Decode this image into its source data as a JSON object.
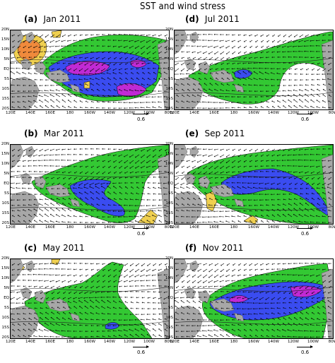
{
  "figure": {
    "title": "SST and wind stress",
    "reference_vector": "0.6",
    "y_ticks": [
      "20N",
      "15N",
      "10N",
      "5N",
      "EQ",
      "5S",
      "10S",
      "15S",
      "20S"
    ],
    "x_ticks": [
      "120E",
      "140E",
      "160E",
      "180",
      "160W",
      "140W",
      "120W",
      "100W",
      "80W"
    ]
  },
  "colors": {
    "land": "#a7a7a7",
    "green": "#33c833",
    "blue": "#3a4cf0",
    "magenta": "#c02ad4",
    "yellow": "#f0d050",
    "orange": "#f08a3c",
    "arrow": "#000000"
  },
  "panels": [
    {
      "id": "a",
      "label": "(a)",
      "month": "Jan 2011",
      "levels": [
        "green",
        "blue",
        "magenta"
      ],
      "warm": [
        "yellow",
        "orange"
      ]
    },
    {
      "id": "d",
      "label": "(d)",
      "month": "Jul 2011",
      "levels": [
        "green",
        "blue"
      ],
      "warm": []
    },
    {
      "id": "b",
      "label": "(b)",
      "month": "Mar 2011",
      "levels": [
        "green",
        "blue"
      ],
      "warm": [
        "yellow"
      ]
    },
    {
      "id": "e",
      "label": "(e)",
      "month": "Sep 2011",
      "levels": [
        "green",
        "blue"
      ],
      "warm": [
        "yellow"
      ]
    },
    {
      "id": "c",
      "label": "(c)",
      "month": "May 2011",
      "levels": [
        "green",
        "blue"
      ],
      "warm": [
        "yellow"
      ]
    },
    {
      "id": "f",
      "label": "(f)",
      "month": "Nov 2011",
      "levels": [
        "green",
        "blue",
        "magenta"
      ],
      "warm": []
    }
  ]
}
